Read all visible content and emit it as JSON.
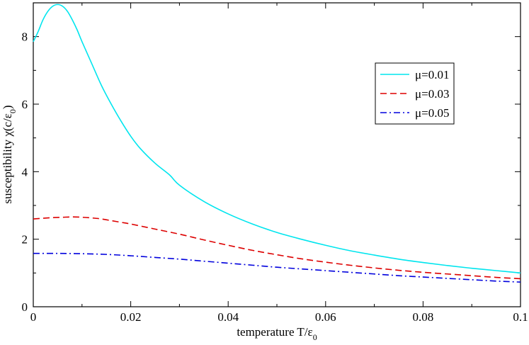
{
  "chart_data": {
    "type": "line",
    "title": "",
    "xlabel": {
      "main": "temperature T/ε",
      "sub": "0"
    },
    "ylabel": {
      "main": "susceptibility χ(c/ε",
      "sub": "0",
      "tail": ")"
    },
    "xlim": [
      0,
      0.1
    ],
    "ylim": [
      0,
      9
    ],
    "x_ticks": [
      0,
      0.02,
      0.04,
      0.06,
      0.08,
      0.1
    ],
    "x_tick_labels": [
      "0",
      "0.02",
      "0.04",
      "0.06",
      "0.08",
      "0.1"
    ],
    "y_ticks": [
      0,
      2,
      4,
      6,
      8
    ],
    "y_tick_labels": [
      "0",
      "2",
      "4",
      "6",
      "8"
    ],
    "grid": false,
    "legend_position": "right",
    "series": [
      {
        "name": "μ=0.01",
        "color": "#00e5ee",
        "dash": "solid",
        "x": [
          0,
          0.001,
          0.002,
          0.003,
          0.004,
          0.005,
          0.006,
          0.007,
          0.008,
          0.009,
          0.01,
          0.012,
          0.014,
          0.016,
          0.018,
          0.02,
          0.022,
          0.025,
          0.028,
          0.03,
          0.035,
          0.04,
          0.045,
          0.05,
          0.055,
          0.06,
          0.065,
          0.07,
          0.075,
          0.08,
          0.085,
          0.09,
          0.095,
          0.1
        ],
        "y": [
          7.85,
          8.15,
          8.5,
          8.75,
          8.9,
          8.95,
          8.9,
          8.75,
          8.5,
          8.2,
          7.85,
          7.2,
          6.55,
          6.0,
          5.5,
          5.05,
          4.68,
          4.25,
          3.9,
          3.6,
          3.12,
          2.75,
          2.45,
          2.2,
          2.0,
          1.82,
          1.66,
          1.53,
          1.41,
          1.31,
          1.22,
          1.14,
          1.07,
          1.0
        ]
      },
      {
        "name": "μ=0.03",
        "color": "#dd0000",
        "dash": "dashed",
        "x": [
          0,
          0.002,
          0.004,
          0.006,
          0.008,
          0.01,
          0.012,
          0.014,
          0.016,
          0.018,
          0.02,
          0.025,
          0.03,
          0.035,
          0.04,
          0.045,
          0.05,
          0.055,
          0.06,
          0.065,
          0.07,
          0.075,
          0.08,
          0.085,
          0.09,
          0.095,
          0.1
        ],
        "y": [
          2.6,
          2.62,
          2.64,
          2.65,
          2.66,
          2.65,
          2.63,
          2.6,
          2.55,
          2.5,
          2.45,
          2.3,
          2.15,
          1.98,
          1.82,
          1.67,
          1.54,
          1.42,
          1.32,
          1.23,
          1.15,
          1.08,
          1.02,
          0.97,
          0.92,
          0.87,
          0.83
        ]
      },
      {
        "name": "μ=0.05",
        "color": "#0000dd",
        "dash": "dashdot",
        "x": [
          0,
          0.005,
          0.01,
          0.015,
          0.02,
          0.025,
          0.03,
          0.035,
          0.04,
          0.045,
          0.05,
          0.055,
          0.06,
          0.065,
          0.07,
          0.075,
          0.08,
          0.085,
          0.09,
          0.095,
          0.1
        ],
        "y": [
          1.58,
          1.58,
          1.57,
          1.55,
          1.51,
          1.46,
          1.41,
          1.35,
          1.29,
          1.23,
          1.17,
          1.12,
          1.07,
          1.02,
          0.97,
          0.92,
          0.88,
          0.84,
          0.8,
          0.76,
          0.73
        ]
      }
    ]
  }
}
